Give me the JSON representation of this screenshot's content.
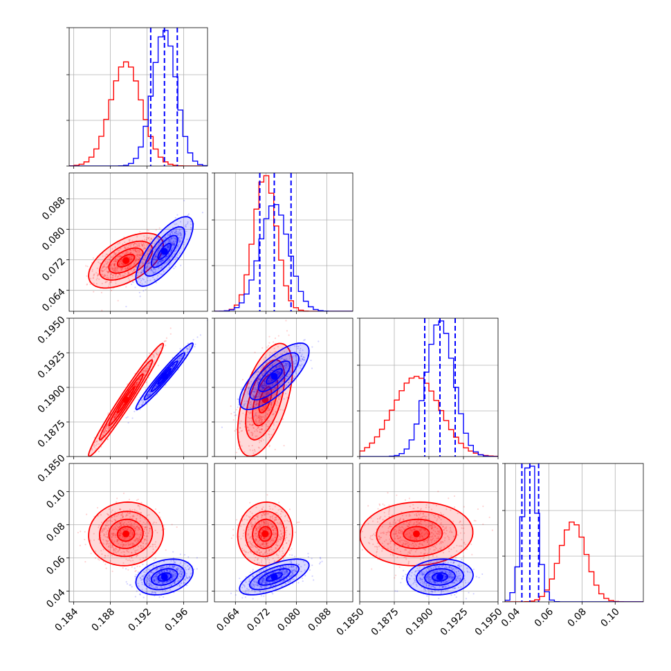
{
  "chart_data": {
    "type": "corner",
    "colors": {
      "red": "#ff0000",
      "blue": "#0000ff",
      "grid": "#b0b0b0"
    },
    "grid": true,
    "parameters": [
      {
        "range": [
          0.1835,
          0.1986
        ],
        "ticks": [
          "0.184",
          "0.188",
          "0.192",
          "0.196"
        ],
        "tick_values": [
          0.184,
          0.188,
          0.192,
          0.196
        ]
      },
      {
        "range": [
          0.0585,
          0.0948
        ],
        "ticks": [
          "0.064",
          "0.072",
          "0.080",
          "0.088"
        ],
        "tick_values": [
          0.064,
          0.072,
          0.08,
          0.088
        ]
      },
      {
        "range": [
          0.185,
          0.195
        ],
        "ticks": [
          "0.1850",
          "0.1875",
          "0.1900",
          "0.1925",
          "0.1950"
        ],
        "tick_values": [
          0.185,
          0.1875,
          0.19,
          0.1925,
          0.195
        ]
      },
      {
        "range": [
          0.0335,
          0.117
        ],
        "ticks": [
          "0.04",
          "0.06",
          "0.08",
          "0.10"
        ],
        "tick_values": [
          0.04,
          0.06,
          0.08,
          0.1
        ]
      }
    ],
    "series": [
      {
        "color": "red",
        "mean": [
          0.1897,
          0.0718,
          0.1891,
          0.0745
        ],
        "sd": [
          0.0017,
          0.003,
          0.0017,
          0.008
        ],
        "corr": [
          [
            0,
            1,
            0.55
          ],
          [
            0,
            2,
            0.98
          ],
          [
            0,
            3,
            0.05
          ],
          [
            1,
            2,
            0.55
          ],
          [
            1,
            3,
            0.05
          ],
          [
            2,
            3,
            0.05
          ]
        ]
      },
      {
        "color": "blue",
        "mean": [
          0.1939,
          0.0742,
          0.1908,
          0.0485
        ],
        "sd": [
          0.0013,
          0.0038,
          0.001,
          0.0045
        ],
        "corr": [
          [
            0,
            1,
            0.75
          ],
          [
            0,
            2,
            0.97
          ],
          [
            0,
            3,
            0.3
          ],
          [
            1,
            2,
            0.75
          ],
          [
            1,
            3,
            0.65
          ],
          [
            2,
            3,
            0.1
          ]
        ]
      }
    ],
    "quantiles_blue": [
      [
        0.1924,
        0.1939,
        0.1953
      ],
      [
        0.0704,
        0.0742,
        0.0786
      ],
      [
        0.1897,
        0.1908,
        0.1919
      ],
      [
        0.0437,
        0.0485,
        0.0538
      ]
    ]
  }
}
